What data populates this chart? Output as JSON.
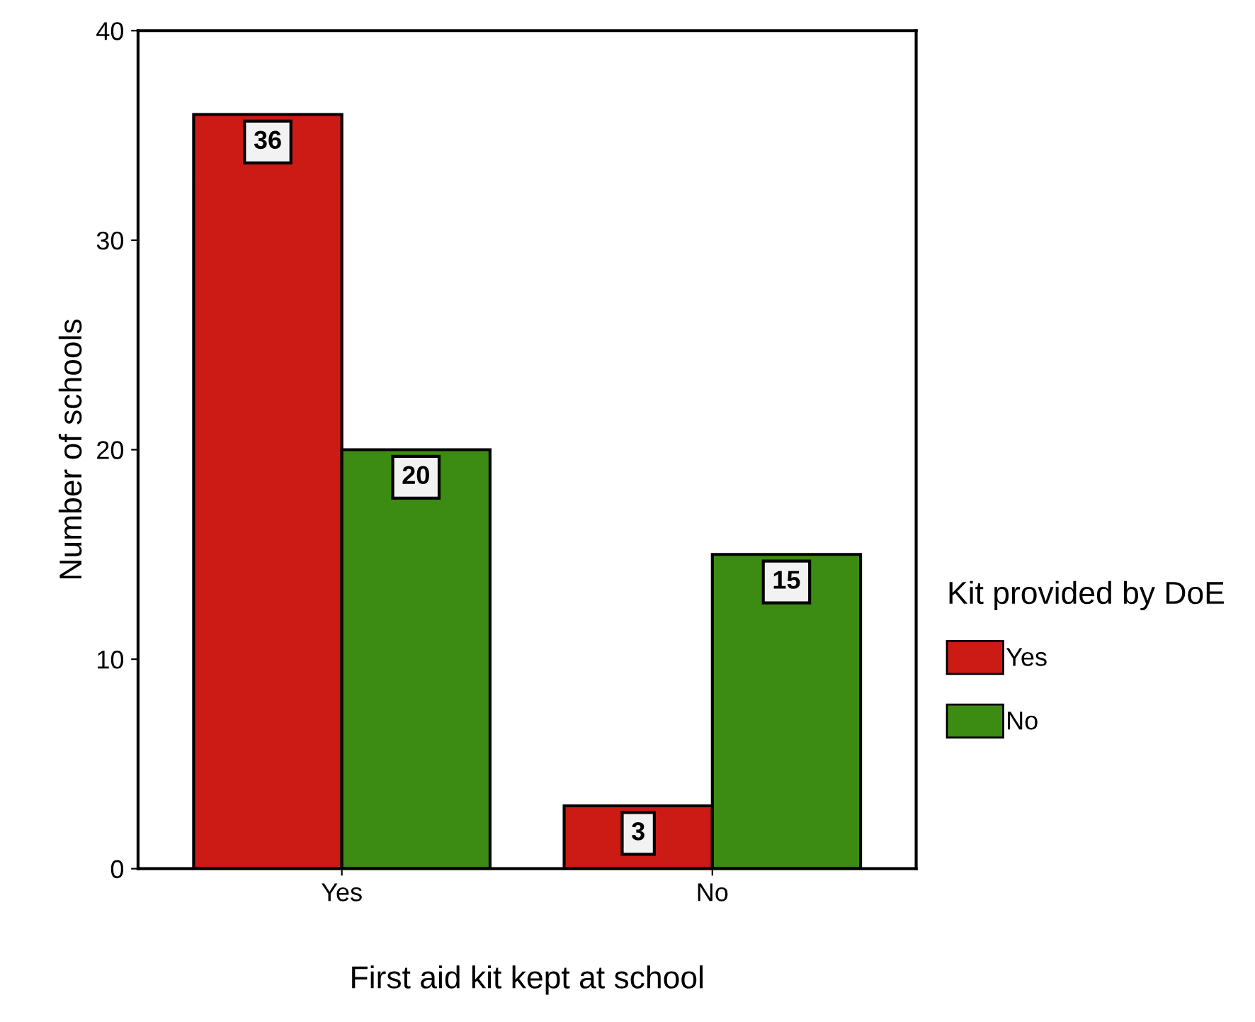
{
  "chart_data": {
    "type": "bar",
    "xlabel": "First aid kit kept at school",
    "ylabel": "Number of schools",
    "legend_title": "Kit provided by DoE",
    "categories": [
      "Yes",
      "No"
    ],
    "series": [
      {
        "name": "Yes",
        "color": "#cc1a14",
        "values": [
          36,
          3
        ]
      },
      {
        "name": "No",
        "color": "#3c8c14",
        "values": [
          20,
          15
        ]
      }
    ],
    "ylim": [
      0,
      40
    ],
    "yticks": [
      0,
      10,
      20,
      30,
      40
    ],
    "grid": false,
    "legend": "right",
    "data_labels": true
  }
}
